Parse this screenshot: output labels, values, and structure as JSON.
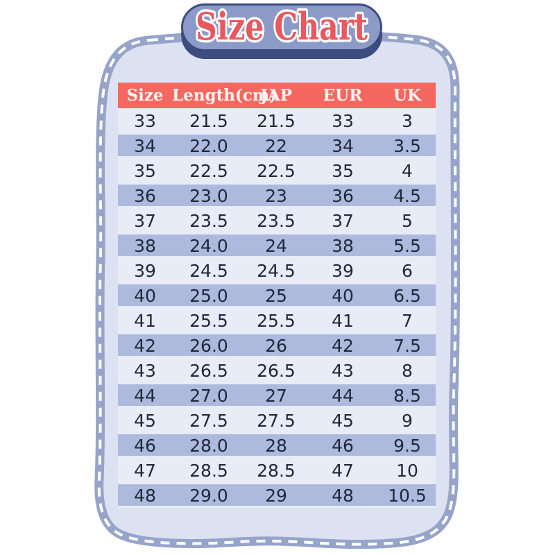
{
  "title": {
    "text": "Size Chart"
  },
  "size_table": {
    "headers": [
      "Size",
      "Length(cm)",
      "JAP",
      "EUR",
      "UK"
    ],
    "rows": [
      [
        "33",
        "21.5",
        "21.5",
        "33",
        "3"
      ],
      [
        "34",
        "22.0",
        "22",
        "34",
        "3.5"
      ],
      [
        "35",
        "22.5",
        "22.5",
        "35",
        "4"
      ],
      [
        "36",
        "23.0",
        "23",
        "36",
        "4.5"
      ],
      [
        "37",
        "23.5",
        "23.5",
        "37",
        "5"
      ],
      [
        "38",
        "24.0",
        "24",
        "38",
        "5.5"
      ],
      [
        "39",
        "24.5",
        "24.5",
        "39",
        "6"
      ],
      [
        "40",
        "25.0",
        "25",
        "40",
        "6.5"
      ],
      [
        "41",
        "25.5",
        "25.5",
        "41",
        "7"
      ],
      [
        "42",
        "26.0",
        "26",
        "42",
        "7.5"
      ],
      [
        "43",
        "26.5",
        "26.5",
        "43",
        "8"
      ],
      [
        "44",
        "27.0",
        "27",
        "44",
        "8.5"
      ],
      [
        "45",
        "27.5",
        "27.5",
        "45",
        "9"
      ],
      [
        "46",
        "28.0",
        "28",
        "46",
        "9.5"
      ],
      [
        "47",
        "28.5",
        "28.5",
        "47",
        "10"
      ],
      [
        "48",
        "29.0",
        "29",
        "48",
        "10.5"
      ]
    ]
  },
  "chart_data": {
    "type": "table",
    "title": "Size Chart",
    "columns": [
      "Size",
      "Length(cm)",
      "JAP",
      "EUR",
      "UK"
    ],
    "rows": [
      [
        33,
        21.5,
        21.5,
        33,
        3
      ],
      [
        34,
        22.0,
        22,
        34,
        3.5
      ],
      [
        35,
        22.5,
        22.5,
        35,
        4
      ],
      [
        36,
        23.0,
        23,
        36,
        4.5
      ],
      [
        37,
        23.5,
        23.5,
        37,
        5
      ],
      [
        38,
        24.0,
        24,
        38,
        5.5
      ],
      [
        39,
        24.5,
        24.5,
        39,
        6
      ],
      [
        40,
        25.0,
        25,
        40,
        6.5
      ],
      [
        41,
        25.5,
        25.5,
        41,
        7
      ],
      [
        42,
        26.0,
        26,
        42,
        7.5
      ],
      [
        43,
        26.5,
        26.5,
        43,
        8
      ],
      [
        44,
        27.0,
        27,
        44,
        8.5
      ],
      [
        45,
        27.5,
        27.5,
        45,
        9
      ],
      [
        46,
        28.0,
        28,
        46,
        9.5
      ],
      [
        47,
        28.5,
        28.5,
        47,
        10
      ],
      [
        48,
        29.0,
        29,
        48,
        10.5
      ]
    ]
  },
  "colors": {
    "header_bg": "#f5685f",
    "header_text": "#fdf3f2",
    "stripe_row": "#aeb9de",
    "light_row": "#e8ecf6",
    "panel_fill": "#dce2f1",
    "panel_border": "#97a4c9",
    "dash": "#ffffff",
    "pill_fill": "#8b9ac6",
    "pill_outline": "#3c4c7e",
    "title_text": "#e7595e",
    "body_text": "#1f2838"
  }
}
